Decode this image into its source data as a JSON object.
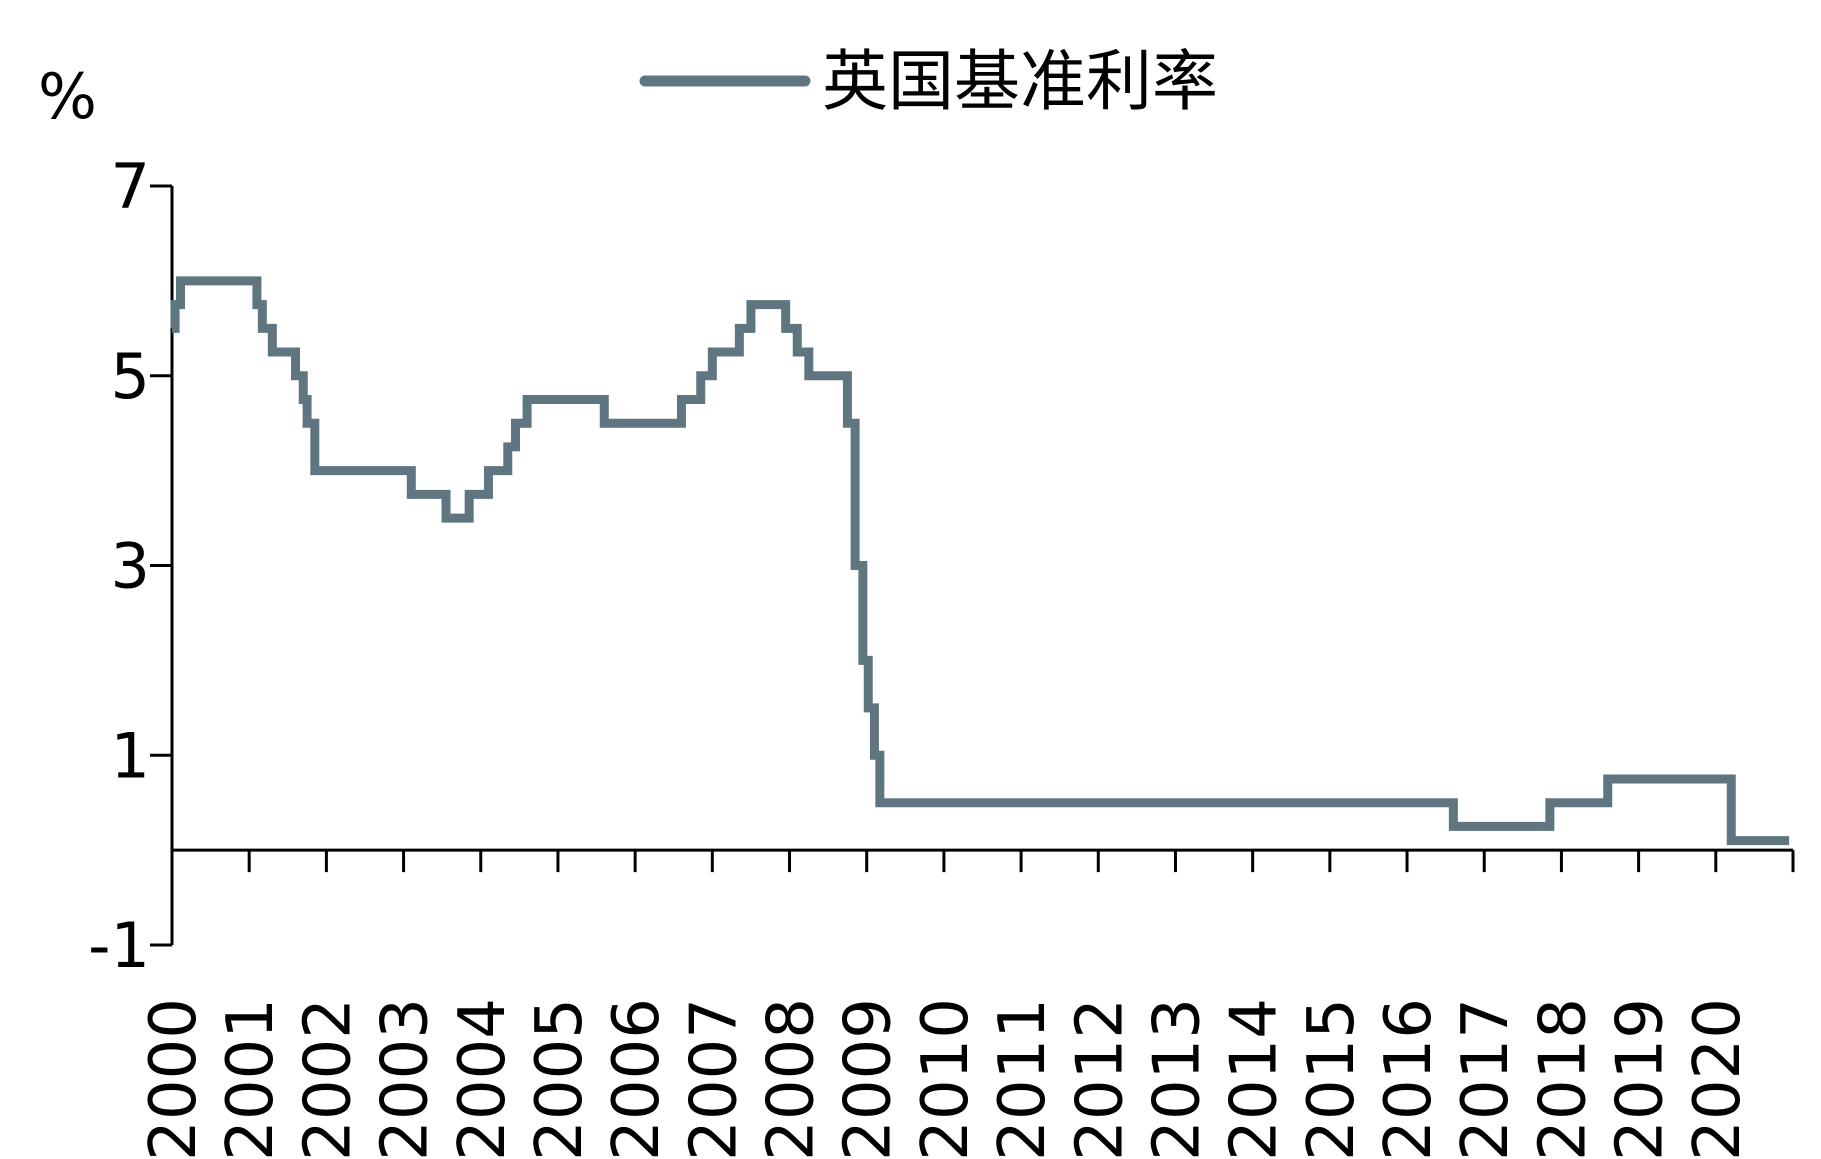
{
  "chart_data": {
    "type": "line",
    "y_unit": "%",
    "x": [
      2000.0,
      2000.04,
      2000.11,
      2001.1,
      2001.17,
      2001.3,
      2001.6,
      2001.7,
      2001.75,
      2001.85,
      2003.1,
      2003.55,
      2003.85,
      2004.1,
      2004.35,
      2004.45,
      2004.6,
      2005.6,
      2006.6,
      2006.85,
      2007.0,
      2007.35,
      2007.5,
      2007.95,
      2008.1,
      2008.25,
      2008.75,
      2008.85,
      2008.95,
      2009.02,
      2009.1,
      2009.17,
      2016.6,
      2017.85,
      2018.6,
      2020.2,
      2020.95
    ],
    "series": [
      {
        "name": "英国基准利率",
        "color": "#5f7680",
        "values": [
          5.5,
          5.75,
          6.0,
          5.75,
          5.5,
          5.25,
          5.0,
          4.75,
          4.5,
          4.0,
          3.75,
          3.5,
          3.75,
          4.0,
          4.25,
          4.5,
          4.75,
          4.5,
          4.75,
          5.0,
          5.25,
          5.5,
          5.75,
          5.5,
          5.25,
          5.0,
          4.5,
          3.0,
          2.0,
          1.5,
          1.0,
          0.5,
          0.25,
          0.5,
          0.75,
          0.1,
          0.1
        ]
      }
    ],
    "xlim": [
      2000,
      2021
    ],
    "xticks": [
      2000,
      2001,
      2002,
      2003,
      2004,
      2005,
      2006,
      2007,
      2008,
      2009,
      2010,
      2011,
      2012,
      2013,
      2014,
      2015,
      2016,
      2017,
      2018,
      2019,
      2020
    ],
    "ylim": [
      -1,
      7
    ],
    "yticks": [
      -1,
      1,
      3,
      5,
      7
    ],
    "step": true
  }
}
